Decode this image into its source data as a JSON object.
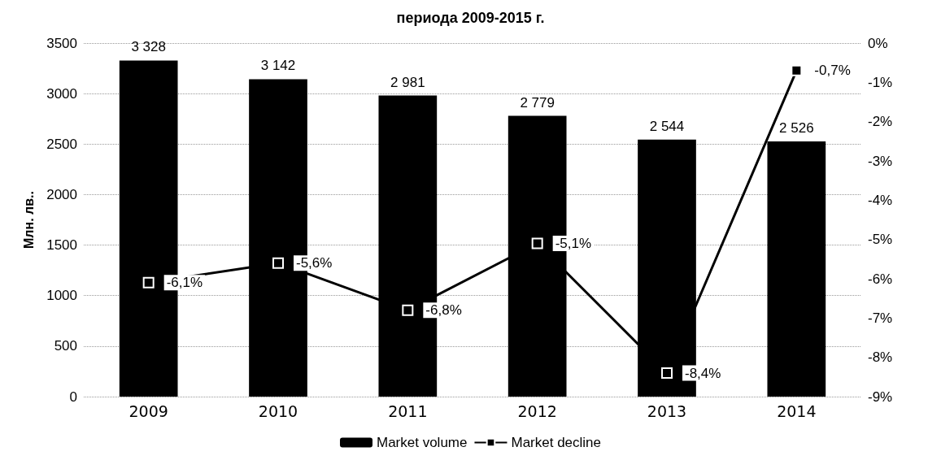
{
  "chart_data": {
    "type": "bar",
    "title": "периода 2009-2015 г.",
    "ylabel": "Млн. лв..",
    "categories": [
      "2009",
      "2010",
      "2011",
      "2012",
      "2013",
      "2014"
    ],
    "series": [
      {
        "name": "Market volume",
        "color": "#000000",
        "values": [
          3328,
          3142,
          2981,
          2779,
          2544,
          2526
        ],
        "value_labels": [
          "3 328",
          "3 142",
          "2 981",
          "2 779",
          "2 544",
          "2 526"
        ]
      },
      {
        "name": "Market decline",
        "type": "line",
        "axis": "y2",
        "color": "#000000",
        "marker": "square",
        "values": [
          -6.1,
          -5.6,
          -6.8,
          -5.1,
          -8.4,
          -0.7
        ],
        "value_labels": [
          "-6,1%",
          "-5,6%",
          "-6,8%",
          "-5,1%",
          "-8,4%",
          "-0,7%"
        ]
      }
    ],
    "ylim": [
      0,
      3500
    ],
    "yticks": [
      0,
      500,
      1000,
      1500,
      2000,
      2500,
      3000,
      3500
    ],
    "y2lim": [
      -9,
      0
    ],
    "y2ticks": [
      {
        "value": -9,
        "label": "-9%"
      },
      {
        "value": -8,
        "label": "-8%"
      },
      {
        "value": -7,
        "label": "-7%"
      },
      {
        "value": -6,
        "label": "-6%"
      },
      {
        "value": -5,
        "label": "-5%"
      },
      {
        "value": -4,
        "label": "-4%"
      },
      {
        "value": -3,
        "label": "-3%"
      },
      {
        "value": -2,
        "label": "-2%"
      },
      {
        "value": -1,
        "label": "-1%"
      },
      {
        "value": 0,
        "label": "0%"
      }
    ],
    "grid": "y",
    "legend": "bottom"
  }
}
